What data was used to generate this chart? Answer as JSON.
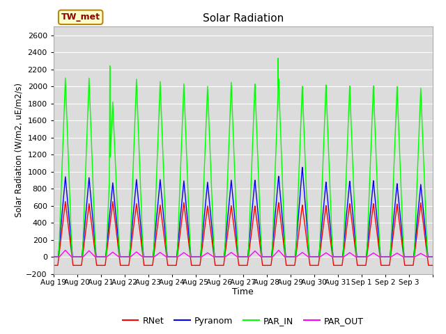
{
  "title": "Solar Radiation",
  "xlabel": "Time",
  "ylabel": "Solar Radiation (W/m2, uE/m2/s)",
  "ylim": [
    -200,
    2700
  ],
  "yticks": [
    -200,
    0,
    200,
    400,
    600,
    800,
    1000,
    1200,
    1400,
    1600,
    1800,
    2000,
    2200,
    2400,
    2600
  ],
  "station_label": "TW_met",
  "bg_color": "#dcdcdc",
  "line_width": 1.0,
  "num_days": 16,
  "rnet_peaks": [
    650,
    625,
    650,
    625,
    610,
    640,
    600,
    605,
    600,
    640,
    610,
    605,
    625,
    625,
    620,
    635
  ],
  "rnet_night": -100,
  "pyranom_peaks": [
    940,
    930,
    870,
    910,
    910,
    895,
    880,
    905,
    905,
    950,
    1055,
    880,
    890,
    895,
    860,
    850
  ],
  "par_in_peaks": [
    2100,
    2100,
    1820,
    2090,
    2065,
    2040,
    2010,
    2060,
    2040,
    2100,
    2010,
    2025,
    2010,
    2010,
    2000,
    1980
  ],
  "par_in_spike_day": 2,
  "par_in_spike_val": 2300,
  "par_in_spike2_day": 9,
  "par_in_spike2_val": 2430,
  "par_out_peaks": [
    78,
    72,
    55,
    58,
    52,
    50,
    48,
    52,
    70,
    78,
    52,
    48,
    50,
    46,
    44,
    40
  ],
  "tick_labels": [
    "Aug 19",
    "Aug 20",
    "Aug 21",
    "Aug 22",
    "Aug 23",
    "Aug 24",
    "Aug 25",
    "Aug 26",
    "Aug 27",
    "Aug 28",
    "Aug 29",
    "Aug 30",
    "Aug 31",
    "Sep 1",
    "Sep 2",
    "Sep 3"
  ],
  "figwidth": 6.4,
  "figheight": 4.8,
  "dpi": 100
}
